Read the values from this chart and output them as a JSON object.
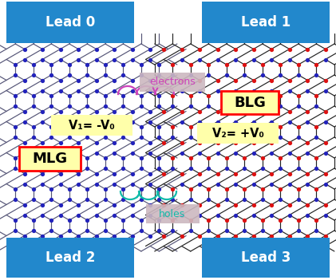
{
  "lead_color": "#2288cc",
  "lead_text_color": "white",
  "lead_fontsize": 12,
  "mlg_node_color": "#2222bb",
  "blg_node_blue": "#2222bb",
  "blg_node_red": "#dd1111",
  "bond_color_mlg": "#555577",
  "bond_color_blg": "#222222",
  "electron_color": "#cc44bb",
  "hole_color": "#11bbaa",
  "label_bg": "#ffffaa",
  "annotation_bg": "#ccb8c0",
  "v1_text": "V₁= -V₀",
  "v2_text": "V₂= +V₀",
  "electrons_text": "electrons",
  "holes_text": "holes",
  "mlg_text": "MLG",
  "blg_text": "BLG",
  "bg_color": "white",
  "figsize": [
    4.21,
    3.51
  ],
  "dpi": 100
}
